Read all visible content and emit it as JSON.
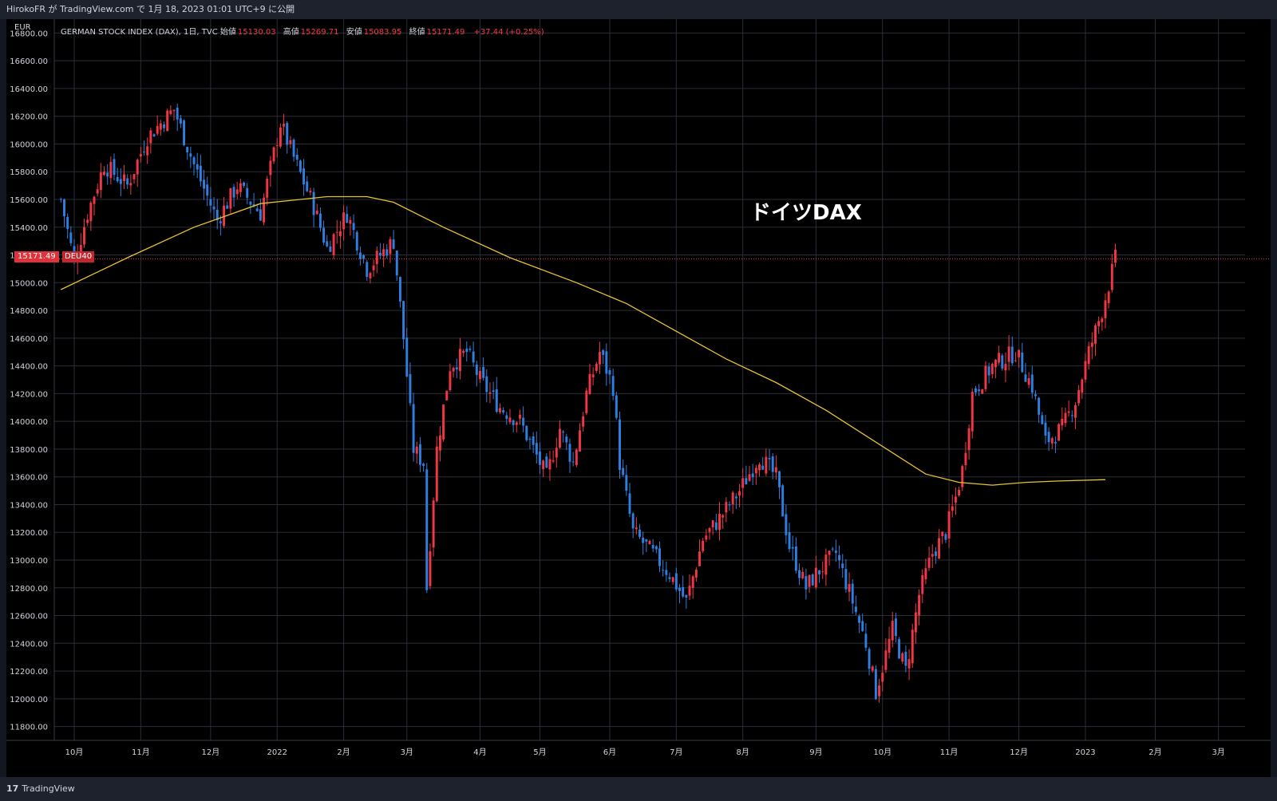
{
  "header": {
    "publish_text": "HirokoFR が TradingView.com で 1月 18, 2023 01:01 UTC+9 に公開"
  },
  "legend": {
    "symbol": "GERMAN STOCK INDEX (DAX), 1日, TVC",
    "open_label": "始値",
    "open": "15130.03",
    "high_label": "高値",
    "high": "15269.71",
    "low_label": "安値",
    "low": "15083.95",
    "close_label": "終値",
    "close": "15171.49",
    "change": "+37.44 (+0.25%)"
  },
  "unit_label": "EUR",
  "annotation": "ドイツDAX",
  "price_tag": {
    "value": "15171.49",
    "symbol": "DEU40"
  },
  "footer": {
    "brand": "TradingView",
    "logo": "17"
  },
  "colors": {
    "up": "#f23645",
    "down": "#2f7fe0",
    "ma": "#e8c230",
    "background": "#000000",
    "grid": "#2a2e39"
  },
  "chart_data": {
    "type": "candlestick",
    "ylim": [
      11700,
      16900
    ],
    "y_ticks": [
      11800,
      12000,
      12200,
      12400,
      12600,
      12800,
      13000,
      13200,
      13400,
      13600,
      13800,
      14000,
      14200,
      14400,
      14600,
      14800,
      15000,
      15200,
      15400,
      15600,
      15800,
      16000,
      16200,
      16400,
      16600,
      16800
    ],
    "x_ticks": [
      {
        "label": "10月",
        "t": 4
      },
      {
        "label": "11月",
        "t": 24
      },
      {
        "label": "12月",
        "t": 45
      },
      {
        "label": "2022",
        "t": 65
      },
      {
        "label": "2月",
        "t": 85
      },
      {
        "label": "3月",
        "t": 104
      },
      {
        "label": "4月",
        "t": 126
      },
      {
        "label": "5月",
        "t": 144
      },
      {
        "label": "6月",
        "t": 165
      },
      {
        "label": "7月",
        "t": 185
      },
      {
        "label": "8月",
        "t": 205
      },
      {
        "label": "9月",
        "t": 227
      },
      {
        "label": "10月",
        "t": 247
      },
      {
        "label": "11月",
        "t": 267
      },
      {
        "label": "12月",
        "t": 288
      },
      {
        "label": "2023",
        "t": 308
      },
      {
        "label": "2月",
        "t": 329
      },
      {
        "label": "3月",
        "t": 348
      }
    ],
    "last_price": 15171.49,
    "close_path": [
      [
        0,
        15600
      ],
      [
        4,
        15150
      ],
      [
        8,
        15500
      ],
      [
        13,
        15850
      ],
      [
        20,
        15700
      ],
      [
        26,
        16050
      ],
      [
        34,
        16250
      ],
      [
        40,
        15850
      ],
      [
        47,
        15450
      ],
      [
        53,
        15700
      ],
      [
        60,
        15500
      ],
      [
        66,
        16150
      ],
      [
        70,
        15900
      ],
      [
        76,
        15550
      ],
      [
        80,
        15250
      ],
      [
        86,
        15500
      ],
      [
        92,
        15100
      ],
      [
        100,
        15300
      ],
      [
        103,
        14600
      ],
      [
        106,
        13800
      ],
      [
        109,
        13700
      ],
      [
        110,
        12800
      ],
      [
        113,
        13800
      ],
      [
        117,
        14400
      ],
      [
        122,
        14500
      ],
      [
        126,
        14300
      ],
      [
        132,
        14100
      ],
      [
        138,
        14000
      ],
      [
        146,
        13600
      ],
      [
        150,
        13950
      ],
      [
        154,
        13700
      ],
      [
        158,
        14200
      ],
      [
        162,
        14500
      ],
      [
        166,
        14250
      ],
      [
        168,
        13700
      ],
      [
        172,
        13200
      ],
      [
        176,
        13100
      ],
      [
        183,
        12900
      ],
      [
        188,
        12700
      ],
      [
        193,
        13150
      ],
      [
        198,
        13300
      ],
      [
        204,
        13500
      ],
      [
        210,
        13750
      ],
      [
        215,
        13600
      ],
      [
        219,
        13100
      ],
      [
        224,
        12800
      ],
      [
        227,
        12900
      ],
      [
        233,
        13050
      ],
      [
        238,
        12700
      ],
      [
        242,
        12400
      ],
      [
        245,
        12050
      ],
      [
        250,
        12500
      ],
      [
        254,
        12200
      ],
      [
        258,
        12750
      ],
      [
        262,
        13050
      ],
      [
        266,
        13200
      ],
      [
        269,
        13450
      ],
      [
        271,
        13650
      ],
      [
        274,
        14200
      ],
      [
        280,
        14400
      ],
      [
        287,
        14500
      ],
      [
        292,
        14250
      ],
      [
        296,
        13850
      ],
      [
        301,
        13950
      ],
      [
        305,
        14150
      ],
      [
        309,
        14500
      ],
      [
        313,
        14800
      ],
      [
        317,
        15171.49
      ]
    ],
    "ma_path": [
      [
        0,
        14950
      ],
      [
        20,
        15180
      ],
      [
        40,
        15400
      ],
      [
        60,
        15570
      ],
      [
        80,
        15620
      ],
      [
        92,
        15620
      ],
      [
        100,
        15580
      ],
      [
        115,
        15400
      ],
      [
        135,
        15180
      ],
      [
        155,
        15000
      ],
      [
        170,
        14850
      ],
      [
        185,
        14650
      ],
      [
        200,
        14450
      ],
      [
        215,
        14280
      ],
      [
        230,
        14080
      ],
      [
        245,
        13850
      ],
      [
        260,
        13620
      ],
      [
        270,
        13560
      ],
      [
        280,
        13540
      ],
      [
        290,
        13560
      ],
      [
        300,
        13570
      ],
      [
        314,
        13580
      ]
    ]
  }
}
